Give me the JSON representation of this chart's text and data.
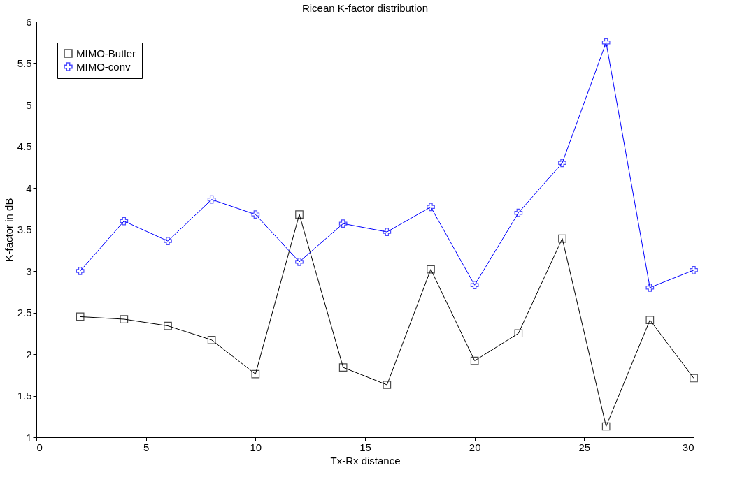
{
  "chart_data": {
    "type": "line",
    "title": "Ricean K-factor distribution",
    "xlabel": "Tx-Rx distance",
    "ylabel": "K-factor in dB",
    "x": [
      2,
      4,
      6,
      8,
      10,
      12,
      14,
      16,
      18,
      20,
      22,
      24,
      26,
      28,
      30
    ],
    "series": [
      {
        "name": "MIMO-Butler",
        "color": "#000000",
        "marker": "square",
        "values": [
          2.45,
          2.42,
          2.34,
          2.17,
          1.76,
          3.68,
          1.84,
          1.63,
          3.02,
          1.92,
          2.25,
          3.39,
          1.13,
          2.41,
          1.71
        ]
      },
      {
        "name": "MIMO-conv",
        "color": "#0000ff",
        "marker": "cross",
        "values": [
          3.0,
          3.6,
          3.36,
          3.86,
          3.68,
          3.11,
          3.57,
          3.47,
          3.77,
          2.83,
          3.7,
          4.3,
          5.75,
          2.8,
          3.01
        ]
      }
    ],
    "xlim": [
      0,
      30
    ],
    "xticks": [
      0,
      5,
      10,
      15,
      20,
      25,
      30
    ],
    "ylim": [
      1,
      6
    ],
    "yticks": [
      1,
      1.5,
      2,
      2.5,
      3,
      3.5,
      4,
      4.5,
      5,
      5.5,
      6
    ],
    "grid": false,
    "legend": "top left",
    "line_style": "solid"
  }
}
